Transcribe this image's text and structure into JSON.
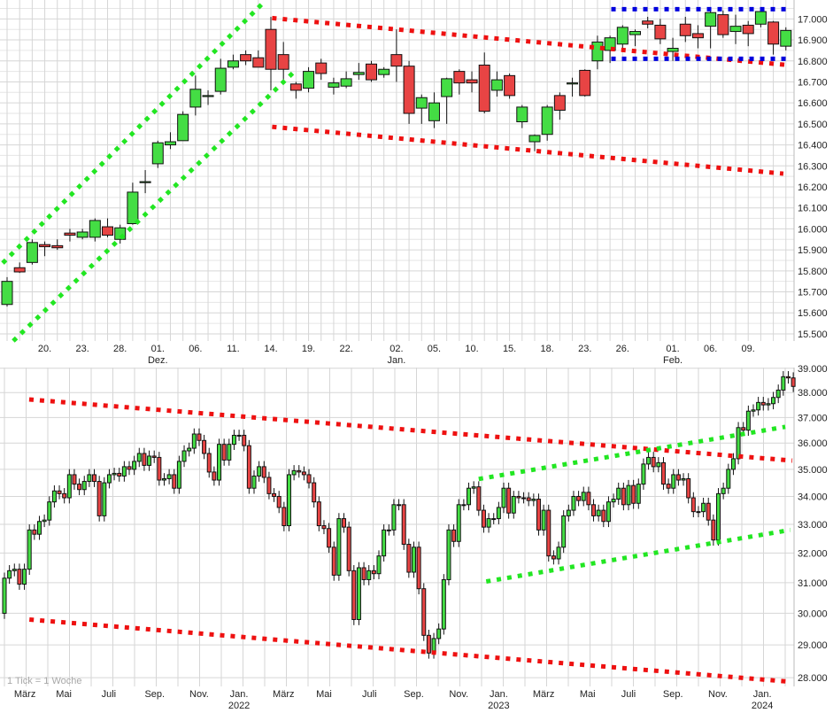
{
  "chart_data": [
    {
      "type": "candlestick",
      "scale": "linear",
      "grid": true,
      "ylim": [
        15466,
        17090
      ],
      "y_ticks": [
        15500,
        15600,
        15700,
        15800,
        15900,
        16000,
        16100,
        16200,
        16300,
        16400,
        16500,
        16600,
        16700,
        16800,
        16900,
        17000
      ],
      "y_tick_labels": [
        "15.500",
        "15.600",
        "15.700",
        "15.800",
        "15.900",
        "16.000",
        "16.100",
        "16.200",
        "16.300",
        "16.400",
        "16.500",
        "16.600",
        "16.700",
        "16.800",
        "16.900",
        "17.000"
      ],
      "x_ticks": [
        {
          "i": 3,
          "label": "20."
        },
        {
          "i": 6,
          "label": "23."
        },
        {
          "i": 9,
          "label": "28."
        },
        {
          "i": 12,
          "label": "01.",
          "sub": "Dez."
        },
        {
          "i": 15,
          "label": "06."
        },
        {
          "i": 18,
          "label": "11."
        },
        {
          "i": 21,
          "label": "14."
        },
        {
          "i": 24,
          "label": "19."
        },
        {
          "i": 27,
          "label": "22."
        },
        {
          "i": 31,
          "label": "02.",
          "sub": "Jan."
        },
        {
          "i": 34,
          "label": "05."
        },
        {
          "i": 37,
          "label": "10."
        },
        {
          "i": 40,
          "label": "15."
        },
        {
          "i": 43,
          "label": "18."
        },
        {
          "i": 46,
          "label": "23."
        },
        {
          "i": 49,
          "label": "26."
        },
        {
          "i": 53,
          "label": "01.",
          "sub": "Feb."
        },
        {
          "i": 56,
          "label": "06."
        },
        {
          "i": 59,
          "label": "09."
        }
      ],
      "ohlc": [
        [
          15640,
          15770,
          15630,
          15750
        ],
        [
          15815,
          15840,
          15790,
          15795
        ],
        [
          15840,
          15950,
          15830,
          15935
        ],
        [
          15925,
          15940,
          15870,
          15915
        ],
        [
          15920,
          15950,
          15900,
          15910
        ],
        [
          15980,
          16000,
          15940,
          15970
        ],
        [
          15960,
          16000,
          15950,
          15985
        ],
        [
          15960,
          16050,
          15940,
          16040
        ],
        [
          16010,
          16050,
          15960,
          15970
        ],
        [
          15950,
          16020,
          15930,
          16005
        ],
        [
          16025,
          16220,
          16020,
          16175
        ],
        [
          16220,
          16280,
          16170,
          16225
        ],
        [
          16310,
          16420,
          16290,
          16410
        ],
        [
          16400,
          16460,
          16380,
          16415
        ],
        [
          16420,
          16560,
          16420,
          16545
        ],
        [
          16580,
          16730,
          16540,
          16665
        ],
        [
          16630,
          16660,
          16590,
          16635
        ],
        [
          16655,
          16810,
          16640,
          16765
        ],
        [
          16770,
          16830,
          16760,
          16800
        ],
        [
          16830,
          16850,
          16780,
          16800
        ],
        [
          16815,
          16850,
          16770,
          16770
        ],
        [
          16950,
          17010,
          16660,
          16760
        ],
        [
          16830,
          16890,
          16690,
          16760
        ],
        [
          16690,
          16700,
          16620,
          16660
        ],
        [
          16670,
          16770,
          16650,
          16750
        ],
        [
          16790,
          16810,
          16710,
          16740
        ],
        [
          16675,
          16720,
          16640,
          16695
        ],
        [
          16680,
          16750,
          16670,
          16715
        ],
        [
          16735,
          16790,
          16710,
          16745
        ],
        [
          16785,
          16800,
          16700,
          16710
        ],
        [
          16735,
          16770,
          16720,
          16760
        ],
        [
          16830,
          16950,
          16700,
          16775
        ],
        [
          16775,
          16800,
          16500,
          16550
        ],
        [
          16575,
          16640,
          16500,
          16625
        ],
        [
          16515,
          16650,
          16480,
          16600
        ],
        [
          16630,
          16720,
          16500,
          16715
        ],
        [
          16750,
          16760,
          16640,
          16695
        ],
        [
          16710,
          16750,
          16650,
          16695
        ],
        [
          16780,
          16840,
          16550,
          16560
        ],
        [
          16660,
          16750,
          16630,
          16710
        ],
        [
          16730,
          16740,
          16620,
          16635
        ],
        [
          16510,
          16590,
          16480,
          16580
        ],
        [
          16415,
          16450,
          16370,
          16445
        ],
        [
          16450,
          16590,
          16420,
          16580
        ],
        [
          16635,
          16650,
          16520,
          16565
        ],
        [
          16690,
          16720,
          16630,
          16695
        ],
        [
          16755,
          16760,
          16630,
          16635
        ],
        [
          16800,
          16920,
          16760,
          16890
        ],
        [
          16850,
          16920,
          16790,
          16910
        ],
        [
          16880,
          16970,
          16850,
          16960
        ],
        [
          16925,
          16950,
          16870,
          16940
        ],
        [
          16990,
          17010,
          16955,
          16975
        ],
        [
          16970,
          17000,
          16880,
          16905
        ],
        [
          16845,
          16910,
          16800,
          16860
        ],
        [
          16975,
          17010,
          16890,
          16920
        ],
        [
          16930,
          16970,
          16860,
          16910
        ],
        [
          16965,
          17040,
          16860,
          17030
        ],
        [
          17020,
          17040,
          16910,
          16925
        ],
        [
          16940,
          17020,
          16880,
          16965
        ],
        [
          16970,
          16990,
          16870,
          16930
        ],
        [
          16975,
          17040,
          16960,
          17035
        ],
        [
          16985,
          16990,
          16830,
          16880
        ],
        [
          16870,
          16960,
          16850,
          16945
        ]
      ],
      "trendlines": [
        {
          "color": "#22e622",
          "from": [
            -0.35,
            15837
          ],
          "to": [
            20.58,
            17088
          ]
        },
        {
          "color": "#22e622",
          "from": [
            0.49,
            15466
          ],
          "to": [
            22.9,
            16751
          ]
        },
        {
          "color": "#ee1111",
          "from": [
            21.1,
            17004
          ],
          "to": [
            62.2,
            16780
          ]
        },
        {
          "color": "#ee1111",
          "from": [
            21.1,
            16486
          ],
          "to": [
            61.8,
            16263
          ]
        },
        {
          "color": "#0000dd",
          "from": [
            48.1,
            17046
          ],
          "to": [
            62.4,
            17046
          ]
        },
        {
          "color": "#0000dd",
          "from": [
            48.1,
            16810
          ],
          "to": [
            62.4,
            16810
          ]
        }
      ]
    },
    {
      "type": "candlestick",
      "scale": "log",
      "grid": true,
      "ylim": [
        27740,
        39030
      ],
      "watermark": "1 Tick = 1 Woche",
      "y_ticks": [
        28000,
        29000,
        30000,
        31000,
        32000,
        33000,
        34000,
        35000,
        36000,
        37000,
        38000,
        39000
      ],
      "y_tick_labels": [
        "28.000",
        "29.000",
        "30.000",
        "31.000",
        "32.000",
        "33.000",
        "34.000",
        "35.000",
        "36.000",
        "37.000",
        "38.000",
        "39.000"
      ],
      "x_ticks": [
        {
          "i": 4.1,
          "label": "März"
        },
        {
          "i": 11.9,
          "label": "Mai"
        },
        {
          "i": 20.9,
          "label": "Juli"
        },
        {
          "i": 30.1,
          "label": "Sep."
        },
        {
          "i": 39,
          "label": "Nov."
        },
        {
          "i": 47,
          "label": "Jan.",
          "sub": "2022"
        },
        {
          "i": 55.9,
          "label": "März"
        },
        {
          "i": 64,
          "label": "Mai"
        },
        {
          "i": 73.1,
          "label": "Juli"
        },
        {
          "i": 82,
          "label": "Sep."
        },
        {
          "i": 91,
          "label": "Nov."
        },
        {
          "i": 99,
          "label": "Jan.",
          "sub": "2023"
        },
        {
          "i": 108,
          "label": "März"
        },
        {
          "i": 116.8,
          "label": "Mai"
        },
        {
          "i": 125,
          "label": "Juli"
        },
        {
          "i": 133.9,
          "label": "Sep."
        },
        {
          "i": 142.9,
          "label": "Nov."
        },
        {
          "i": 151.8,
          "label": "Jan.",
          "sub": "2024"
        }
      ],
      "first_open": 30000,
      "close": [
        31150,
        31400,
        31450,
        30950,
        31450,
        32800,
        32650,
        33100,
        33150,
        33800,
        34200,
        34100,
        33950,
        34800,
        34450,
        34250,
        34550,
        34800,
        34550,
        33300,
        34500,
        34800,
        34850,
        34750,
        35100,
        35000,
        35300,
        35600,
        35150,
        35500,
        35450,
        34600,
        34650,
        34800,
        34300,
        35300,
        35700,
        35800,
        36350,
        36100,
        35600,
        34900,
        34600,
        35950,
        35350,
        35950,
        36300,
        36300,
        35900,
        34300,
        34750,
        35100,
        34700,
        34100,
        34000,
        33600,
        32950,
        34800,
        34950,
        34900,
        34800,
        34500,
        33800,
        32950,
        32850,
        32200,
        31250,
        33200,
        32900,
        31400,
        29800,
        31500,
        31100,
        31400,
        31300,
        31900,
        32800,
        32800,
        33700,
        33700,
        32300,
        31350,
        32200,
        30800,
        29300,
        28750,
        29200,
        29500,
        31100,
        32800,
        32400,
        33700,
        33700,
        34300,
        34350,
        33500,
        32900,
        33200,
        33200,
        33600,
        34300,
        33400,
        34000,
        33950,
        33950,
        33850,
        33900,
        32800,
        33500,
        31900,
        31800,
        32200,
        33300,
        33500,
        34000,
        33850,
        34150,
        33700,
        33300,
        33500,
        33100,
        33800,
        33900,
        34300,
        33700,
        34400,
        33750,
        34450,
        35200,
        35450,
        35100,
        35250,
        34450,
        34300,
        34800,
        34600,
        34650,
        33950,
        33450,
        33450,
        33750,
        33150,
        32450,
        34100,
        34300,
        35000,
        35400,
        36600,
        36500,
        37250,
        37300,
        37600,
        37500,
        37550,
        37800,
        38100,
        38650,
        38600,
        38250
      ],
      "trendlines": [
        {
          "color": "#ee1111",
          "from": [
            4.96,
            37720
          ],
          "to": [
            157.8,
            35330
          ]
        },
        {
          "color": "#ee1111",
          "from": [
            5,
            29800
          ],
          "to": [
            157.3,
            27880
          ]
        },
        {
          "color": "#22e622",
          "from": [
            95,
            34640
          ],
          "to": [
            156.4,
            36630
          ]
        },
        {
          "color": "#22e622",
          "from": [
            96.5,
            31040
          ],
          "to": [
            157.4,
            32800
          ]
        }
      ]
    }
  ],
  "colors": {
    "up": "#44dd44",
    "down": "#e84444",
    "grid": "#d6d6d6"
  }
}
